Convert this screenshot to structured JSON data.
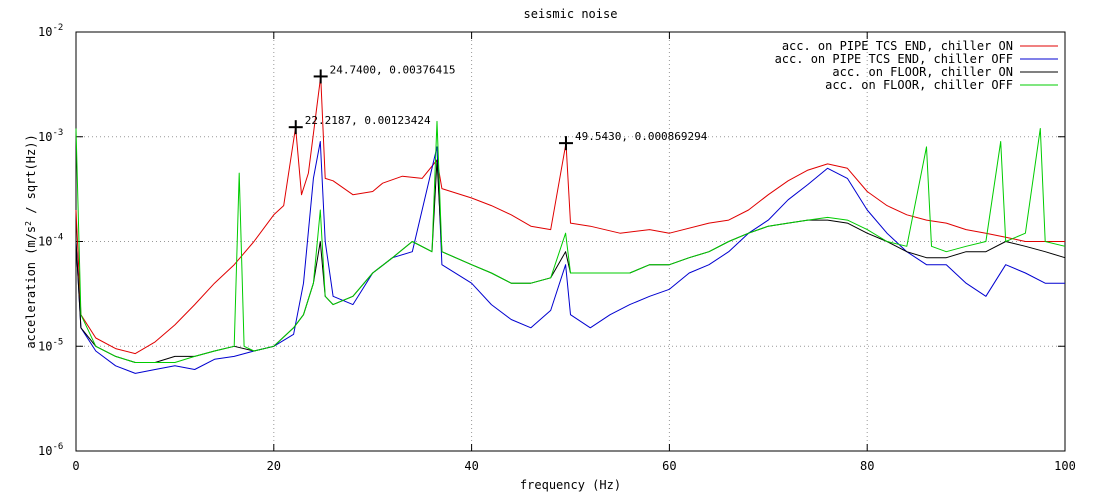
{
  "chart_data": {
    "type": "line",
    "title": "seismic noise",
    "xlabel": "frequency (Hz)",
    "ylabel_parts": [
      "acceleration (m/s",
      "2",
      " / sqrt(Hz))"
    ],
    "xlim": [
      0,
      100
    ],
    "ylim": [
      1e-06,
      0.01
    ],
    "yscale": "log",
    "grid": true,
    "legend_position": "top-right",
    "x_ticks": [
      0,
      20,
      40,
      60,
      80,
      100
    ],
    "x_tick_labels": [
      "0",
      "20",
      "40",
      "60",
      "80",
      "100"
    ],
    "y_ticks": [
      1e-06,
      1e-05,
      0.0001,
      0.001,
      0.01
    ],
    "y_tick_labels": [
      {
        "base": "10",
        "exp": "-6"
      },
      {
        "base": "10",
        "exp": "-5"
      },
      {
        "base": "10",
        "exp": "-4"
      },
      {
        "base": "10",
        "exp": "-3"
      },
      {
        "base": "10",
        "exp": "-2"
      }
    ],
    "series": [
      {
        "name": "acc. on PIPE TCS END, chiller ON",
        "color": "#e00000",
        "points": [
          [
            0,
            0.0002
          ],
          [
            0.5,
            2e-05
          ],
          [
            2,
            1.2e-05
          ],
          [
            4,
            9.5e-06
          ],
          [
            6,
            8.5e-06
          ],
          [
            8,
            1.1e-05
          ],
          [
            10,
            1.6e-05
          ],
          [
            12,
            2.5e-05
          ],
          [
            14,
            4e-05
          ],
          [
            16,
            6e-05
          ],
          [
            18,
            0.0001
          ],
          [
            20,
            0.00018
          ],
          [
            21,
            0.00022
          ],
          [
            22.2,
            0.00123424
          ],
          [
            22.8,
            0.00028
          ],
          [
            23.5,
            0.00045
          ],
          [
            24.74,
            0.00376415
          ],
          [
            25.2,
            0.0004
          ],
          [
            26,
            0.00038
          ],
          [
            28,
            0.00028
          ],
          [
            30,
            0.0003
          ],
          [
            31,
            0.00036
          ],
          [
            33,
            0.00042
          ],
          [
            35,
            0.0004
          ],
          [
            36.5,
            0.0006
          ],
          [
            37,
            0.00032
          ],
          [
            40,
            0.00026
          ],
          [
            42,
            0.00022
          ],
          [
            44,
            0.00018
          ],
          [
            46,
            0.00014
          ],
          [
            48,
            0.00013
          ],
          [
            49.54,
            0.000869294
          ],
          [
            50,
            0.00015
          ],
          [
            52,
            0.00014
          ],
          [
            55,
            0.00012
          ],
          [
            58,
            0.00013
          ],
          [
            60,
            0.00012
          ],
          [
            64,
            0.00015
          ],
          [
            66,
            0.00016
          ],
          [
            68,
            0.0002
          ],
          [
            70,
            0.00028
          ],
          [
            72,
            0.00038
          ],
          [
            74,
            0.00048
          ],
          [
            76,
            0.00055
          ],
          [
            78,
            0.0005
          ],
          [
            80,
            0.0003
          ],
          [
            82,
            0.00022
          ],
          [
            84,
            0.00018
          ],
          [
            86,
            0.00016
          ],
          [
            88,
            0.00015
          ],
          [
            90,
            0.00013
          ],
          [
            92,
            0.00012
          ],
          [
            94,
            0.00011
          ],
          [
            96,
            0.0001
          ],
          [
            98,
            0.0001
          ],
          [
            100,
            0.0001
          ]
        ]
      },
      {
        "name": "acc. on PIPE TCS END, chiller OFF",
        "color": "#0000d0",
        "points": [
          [
            0,
            0.0001
          ],
          [
            0.5,
            1.5e-05
          ],
          [
            2,
            9e-06
          ],
          [
            4,
            6.5e-06
          ],
          [
            6,
            5.5e-06
          ],
          [
            8,
            6e-06
          ],
          [
            10,
            6.5e-06
          ],
          [
            12,
            6e-06
          ],
          [
            14,
            7.5e-06
          ],
          [
            16,
            8e-06
          ],
          [
            18,
            9e-06
          ],
          [
            20,
            1e-05
          ],
          [
            22,
            1.3e-05
          ],
          [
            23,
            4e-05
          ],
          [
            24,
            0.0004
          ],
          [
            24.7,
            0.0009
          ],
          [
            25.2,
            0.0001
          ],
          [
            26,
            3e-05
          ],
          [
            28,
            2.5e-05
          ],
          [
            30,
            5e-05
          ],
          [
            32,
            7e-05
          ],
          [
            34,
            8e-05
          ],
          [
            36.5,
            0.0008
          ],
          [
            37,
            6e-05
          ],
          [
            40,
            4e-05
          ],
          [
            42,
            2.5e-05
          ],
          [
            44,
            1.8e-05
          ],
          [
            46,
            1.5e-05
          ],
          [
            48,
            2.2e-05
          ],
          [
            49.5,
            6e-05
          ],
          [
            50,
            2e-05
          ],
          [
            52,
            1.5e-05
          ],
          [
            54,
            2e-05
          ],
          [
            56,
            2.5e-05
          ],
          [
            58,
            3e-05
          ],
          [
            60,
            3.5e-05
          ],
          [
            62,
            5e-05
          ],
          [
            64,
            6e-05
          ],
          [
            66,
            8e-05
          ],
          [
            68,
            0.00012
          ],
          [
            70,
            0.00016
          ],
          [
            72,
            0.00025
          ],
          [
            74,
            0.00035
          ],
          [
            76,
            0.0005
          ],
          [
            78,
            0.0004
          ],
          [
            80,
            0.0002
          ],
          [
            82,
            0.00012
          ],
          [
            84,
            8e-05
          ],
          [
            86,
            6e-05
          ],
          [
            88,
            6e-05
          ],
          [
            90,
            4e-05
          ],
          [
            92,
            3e-05
          ],
          [
            94,
            6e-05
          ],
          [
            96,
            5e-05
          ],
          [
            98,
            4e-05
          ],
          [
            100,
            4e-05
          ]
        ]
      },
      {
        "name": "acc. on FLOOR, chiller ON",
        "color": "#000000",
        "points": [
          [
            0,
            0.0001
          ],
          [
            0.5,
            1.5e-05
          ],
          [
            2,
            1e-05
          ],
          [
            4,
            8e-06
          ],
          [
            6,
            7e-06
          ],
          [
            8,
            7e-06
          ],
          [
            10,
            8e-06
          ],
          [
            12,
            8e-06
          ],
          [
            14,
            9e-06
          ],
          [
            16,
            1e-05
          ],
          [
            18,
            9e-06
          ],
          [
            20,
            1e-05
          ],
          [
            22,
            1.5e-05
          ],
          [
            23,
            2e-05
          ],
          [
            24,
            4e-05
          ],
          [
            24.7,
            0.0001
          ],
          [
            25.2,
            3e-05
          ],
          [
            26,
            2.5e-05
          ],
          [
            28,
            3e-05
          ],
          [
            30,
            5e-05
          ],
          [
            32,
            7e-05
          ],
          [
            34,
            0.0001
          ],
          [
            36,
            8e-05
          ],
          [
            36.5,
            0.0006
          ],
          [
            37,
            8e-05
          ],
          [
            40,
            6e-05
          ],
          [
            42,
            5e-05
          ],
          [
            44,
            4e-05
          ],
          [
            46,
            4e-05
          ],
          [
            48,
            4.5e-05
          ],
          [
            49.5,
            8e-05
          ],
          [
            50,
            5e-05
          ],
          [
            52,
            5e-05
          ],
          [
            54,
            5e-05
          ],
          [
            56,
            5e-05
          ],
          [
            58,
            6e-05
          ],
          [
            60,
            6e-05
          ],
          [
            62,
            7e-05
          ],
          [
            64,
            8e-05
          ],
          [
            66,
            0.0001
          ],
          [
            68,
            0.00012
          ],
          [
            70,
            0.00014
          ],
          [
            72,
            0.00015
          ],
          [
            74,
            0.00016
          ],
          [
            76,
            0.00016
          ],
          [
            78,
            0.00015
          ],
          [
            80,
            0.00012
          ],
          [
            82,
            0.0001
          ],
          [
            84,
            8e-05
          ],
          [
            86,
            7e-05
          ],
          [
            88,
            7e-05
          ],
          [
            90,
            8e-05
          ],
          [
            92,
            8e-05
          ],
          [
            94,
            0.0001
          ],
          [
            96,
            9e-05
          ],
          [
            98,
            8e-05
          ],
          [
            100,
            7e-05
          ]
        ]
      },
      {
        "name": "acc. on FLOOR, chiller OFF",
        "color": "#00cc00",
        "points": [
          [
            0,
            0.0012
          ],
          [
            0.5,
            2e-05
          ],
          [
            2,
            1e-05
          ],
          [
            4,
            8e-06
          ],
          [
            6,
            7e-06
          ],
          [
            8,
            7e-06
          ],
          [
            10,
            7e-06
          ],
          [
            12,
            8e-06
          ],
          [
            14,
            9e-06
          ],
          [
            16,
            1e-05
          ],
          [
            16.5,
            0.00045
          ],
          [
            17,
            1e-05
          ],
          [
            18,
            9e-06
          ],
          [
            20,
            1e-05
          ],
          [
            22,
            1.5e-05
          ],
          [
            23,
            2e-05
          ],
          [
            24,
            4e-05
          ],
          [
            24.7,
            0.0002
          ],
          [
            25.2,
            3e-05
          ],
          [
            26,
            2.5e-05
          ],
          [
            28,
            3e-05
          ],
          [
            30,
            5e-05
          ],
          [
            32,
            7e-05
          ],
          [
            34,
            0.0001
          ],
          [
            36,
            8e-05
          ],
          [
            36.5,
            0.0014
          ],
          [
            37,
            8e-05
          ],
          [
            40,
            6e-05
          ],
          [
            42,
            5e-05
          ],
          [
            44,
            4e-05
          ],
          [
            46,
            4e-05
          ],
          [
            48,
            4.5e-05
          ],
          [
            49.5,
            0.00012
          ],
          [
            50,
            5e-05
          ],
          [
            52,
            5e-05
          ],
          [
            54,
            5e-05
          ],
          [
            56,
            5e-05
          ],
          [
            58,
            6e-05
          ],
          [
            60,
            6e-05
          ],
          [
            62,
            7e-05
          ],
          [
            64,
            8e-05
          ],
          [
            66,
            0.0001
          ],
          [
            68,
            0.00012
          ],
          [
            70,
            0.00014
          ],
          [
            72,
            0.00015
          ],
          [
            74,
            0.00016
          ],
          [
            76,
            0.00017
          ],
          [
            78,
            0.00016
          ],
          [
            80,
            0.00013
          ],
          [
            82,
            0.0001
          ],
          [
            84,
            9e-05
          ],
          [
            86,
            0.0008
          ],
          [
            86.5,
            9e-05
          ],
          [
            88,
            8e-05
          ],
          [
            90,
            9e-05
          ],
          [
            92,
            0.0001
          ],
          [
            93.5,
            0.0009
          ],
          [
            94,
            0.0001
          ],
          [
            96,
            0.00012
          ],
          [
            97.5,
            0.0012
          ],
          [
            98,
            0.0001
          ],
          [
            100,
            9e-05
          ]
        ]
      }
    ],
    "annotations": [
      {
        "x": 22.2187,
        "y": 0.00123424,
        "label": "22.2187,  0.00123424"
      },
      {
        "x": 24.74,
        "y": 0.00376415,
        "label": "24.7400,  0.00376415"
      },
      {
        "x": 49.543,
        "y": 0.000869294,
        "label": "49.5430,  0.000869294"
      }
    ]
  }
}
